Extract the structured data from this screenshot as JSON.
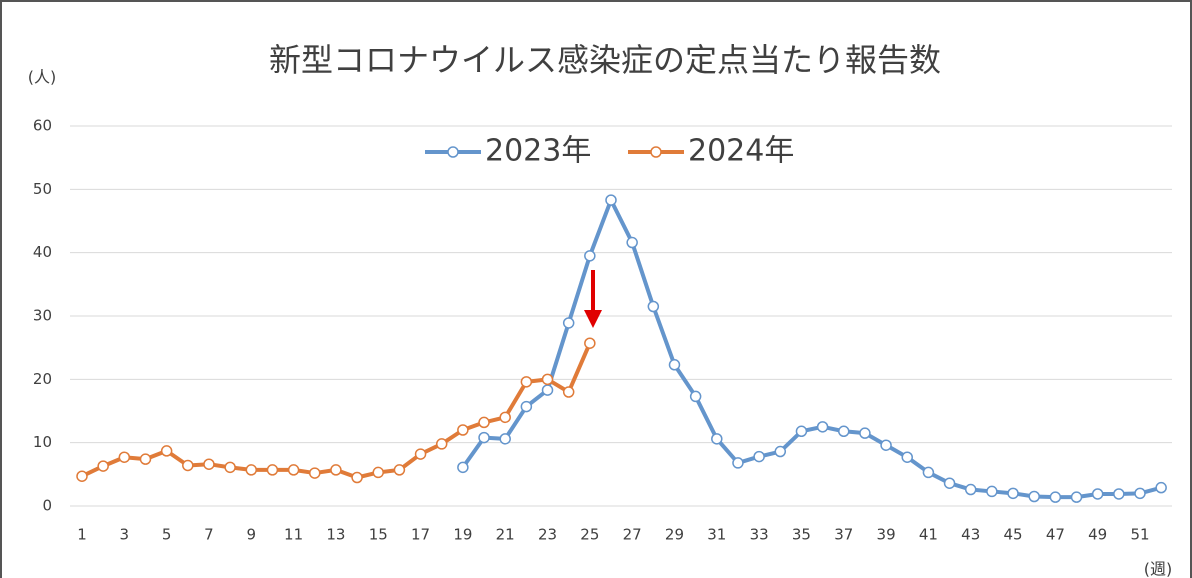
{
  "chart_data": {
    "type": "line",
    "title": "新型コロナウイルス感染症の定点当たり報告数",
    "y_label": "(人)",
    "x_label": "(週)",
    "categories": [
      "1",
      null,
      "3",
      null,
      "5",
      null,
      "7",
      null,
      "9",
      null,
      "11",
      null,
      "13",
      null,
      "15",
      null,
      "17",
      null,
      "19",
      null,
      "21",
      null,
      "23",
      null,
      "25",
      null,
      "27",
      null,
      "29",
      null,
      "31",
      null,
      "33",
      null,
      "35",
      null,
      "37",
      null,
      "39",
      null,
      "41",
      null,
      "43",
      null,
      "45",
      null,
      "47",
      null,
      "49",
      null,
      "51",
      null
    ],
    "series": [
      {
        "name": "2023年",
        "color": "#6495cc",
        "values": [
          null,
          null,
          null,
          null,
          null,
          null,
          null,
          null,
          null,
          null,
          null,
          null,
          null,
          null,
          null,
          null,
          null,
          null,
          6.1,
          10.8,
          10.6,
          15.7,
          18.3,
          28.9,
          39.5,
          48.3,
          41.6,
          31.5,
          22.3,
          17.3,
          10.6,
          6.8,
          7.8,
          8.6,
          11.8,
          12.5,
          11.8,
          11.5,
          9.6,
          7.7,
          5.3,
          3.6,
          2.6,
          2.3,
          2.0,
          1.5,
          1.4,
          1.4,
          1.9,
          1.9,
          2.0,
          2.9
        ]
      },
      {
        "name": "2024年",
        "color": "#e07b39",
        "values": [
          4.7,
          6.3,
          7.7,
          7.4,
          8.7,
          6.4,
          6.6,
          6.1,
          5.7,
          5.7,
          5.7,
          5.2,
          5.7,
          4.5,
          5.3,
          5.7,
          8.2,
          9.8,
          12.0,
          13.2,
          14.0,
          19.6,
          20.0,
          18.0,
          25.7,
          null,
          null,
          null,
          null,
          null,
          null,
          null,
          null,
          null,
          null,
          null,
          null,
          null,
          null,
          null,
          null,
          null,
          null,
          null,
          null,
          null,
          null,
          null,
          null,
          null,
          null,
          null
        ]
      }
    ],
    "ylim": [
      0,
      60
    ],
    "yticks": [
      0,
      10,
      20,
      30,
      40,
      50,
      60
    ],
    "grid": true
  }
}
